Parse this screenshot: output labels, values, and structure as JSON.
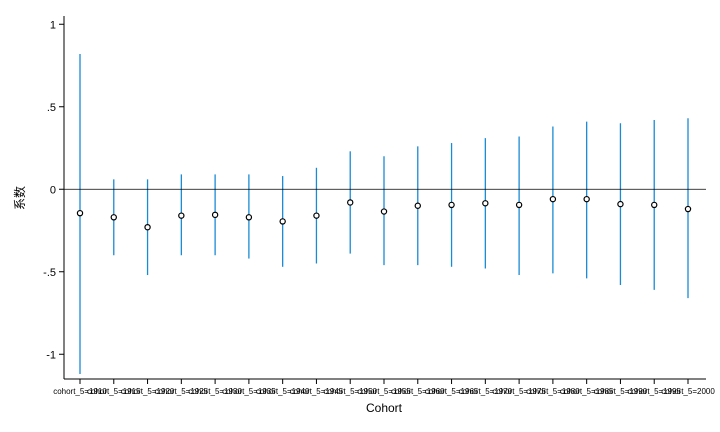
{
  "chart_data": {
    "type": "scatter",
    "title": "",
    "xlabel": "Cohort",
    "ylabel": "系数",
    "ylim": [
      -1.15,
      1.05
    ],
    "y_ticks": [
      {
        "value": 1,
        "label": "1"
      },
      {
        "value": 0.5,
        "label": ".5"
      },
      {
        "value": 0,
        "label": "0"
      },
      {
        "value": -0.5,
        "label": "-.5"
      },
      {
        "value": -1,
        "label": "-1"
      }
    ],
    "reference_line": 0,
    "colors": {
      "ci": "#1a8ad4",
      "point": "#000000",
      "refline": "#000000"
    },
    "categories": [
      "cohort_5=1910",
      "cohort_5=1915",
      "cohort_5=1920",
      "cohort_5=1925",
      "cohort_5=1930",
      "cohort_5=1935",
      "cohort_5=1940",
      "cohort_5=1945",
      "cohort_5=1950",
      "cohort_5=1955",
      "cohort_5=1960",
      "cohort_5=1965",
      "cohort_5=1970",
      "cohort_5=1975",
      "cohort_5=1980",
      "cohort_5=1985",
      "cohort_5=1990",
      "cohort_5=1995",
      "cohort_5=2000"
    ],
    "estimates": [
      -0.145,
      -0.17,
      -0.23,
      -0.16,
      -0.155,
      -0.17,
      -0.195,
      -0.16,
      -0.08,
      -0.135,
      -0.1,
      -0.095,
      -0.085,
      -0.095,
      -0.06,
      -0.06,
      -0.09,
      -0.095,
      -0.12
    ],
    "ci_lower": [
      -1.12,
      -0.4,
      -0.52,
      -0.4,
      -0.4,
      -0.42,
      -0.47,
      -0.45,
      -0.39,
      -0.46,
      -0.46,
      -0.47,
      -0.48,
      -0.52,
      -0.51,
      -0.54,
      -0.58,
      -0.61,
      -0.66
    ],
    "ci_upper": [
      0.82,
      0.06,
      0.06,
      0.09,
      0.09,
      0.09,
      0.08,
      0.13,
      0.23,
      0.2,
      0.26,
      0.28,
      0.31,
      0.32,
      0.38,
      0.41,
      0.4,
      0.42,
      0.43
    ]
  }
}
